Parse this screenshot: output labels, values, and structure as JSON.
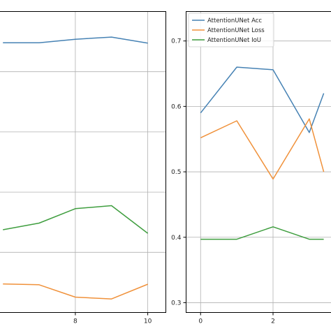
{
  "colors": {
    "acc": "#4682b4",
    "loss": "#f0913a",
    "iou": "#3f9e3f"
  },
  "chart_data": [
    {
      "type": "line",
      "xlim": [
        5.9,
        10.5
      ],
      "ylim": [
        0,
        1
      ],
      "x_ticks": [
        8,
        10
      ],
      "x_tick_labels": [
        "8",
        "10"
      ],
      "grid": true,
      "series": [
        {
          "key": "acc",
          "x": [
            6,
            7,
            8,
            9,
            10
          ],
          "values": [
            0.896,
            0.896,
            0.908,
            0.915,
            0.895
          ]
        },
        {
          "key": "iou",
          "x": [
            6,
            7,
            8,
            9,
            10
          ],
          "values": [
            0.275,
            0.297,
            0.345,
            0.355,
            0.263
          ]
        },
        {
          "key": "loss",
          "x": [
            6,
            7,
            8,
            9,
            10
          ],
          "values": [
            0.095,
            0.092,
            0.051,
            0.045,
            0.094
          ]
        }
      ]
    },
    {
      "type": "line",
      "xlim": [
        -0.4,
        3.6
      ],
      "ylim": [
        0.285,
        0.745
      ],
      "x_ticks": [
        0,
        2
      ],
      "x_tick_labels": [
        "0",
        "2"
      ],
      "y_ticks": [
        0.3,
        0.4,
        0.5,
        0.6,
        0.7
      ],
      "y_tick_labels": [
        "0.3",
        "0.4",
        "0.5",
        "0.6",
        "0.7"
      ],
      "grid": true,
      "legend_position": "upper-left",
      "series": [
        {
          "key": "acc",
          "name": "AttentionUNet Acc",
          "x": [
            0,
            1,
            2,
            3,
            3.4
          ],
          "values": [
            0.59,
            0.66,
            0.656,
            0.56,
            0.62
          ]
        },
        {
          "key": "loss",
          "name": "AttentionUNet Loss",
          "x": [
            0,
            1,
            2,
            3,
            3.4
          ],
          "values": [
            0.552,
            0.578,
            0.489,
            0.581,
            0.5
          ]
        },
        {
          "key": "iou",
          "name": "AttentionUNet IoU",
          "x": [
            0,
            1,
            2,
            3,
            3.4
          ],
          "values": [
            0.397,
            0.397,
            0.416,
            0.397,
            0.397
          ]
        }
      ]
    }
  ]
}
